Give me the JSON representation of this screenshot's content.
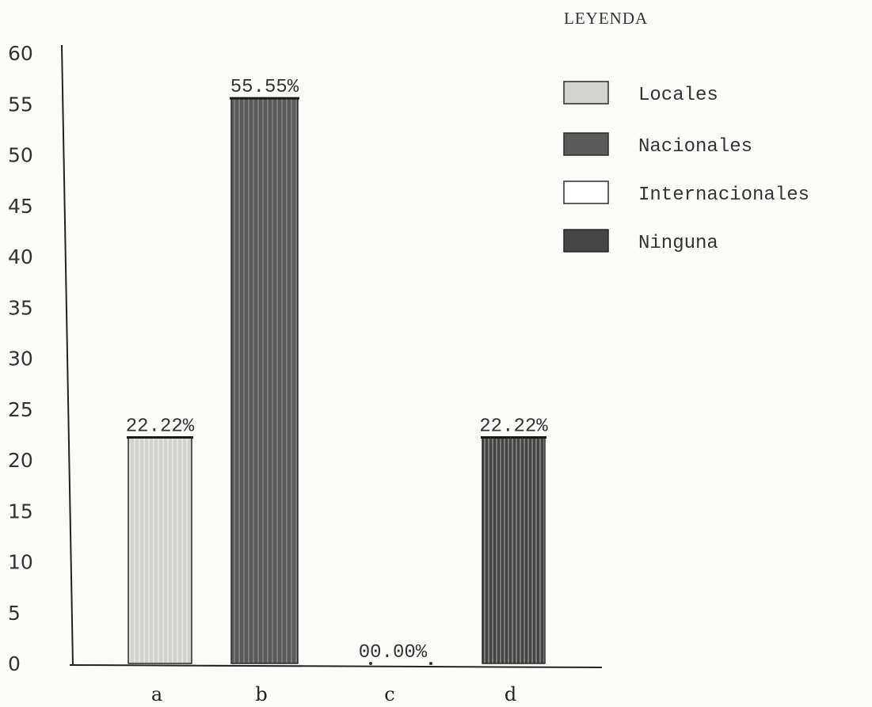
{
  "chart_data": {
    "type": "bar",
    "categories": [
      "a",
      "b",
      "c",
      "d"
    ],
    "values": [
      22.22,
      55.55,
      0.0,
      22.22
    ],
    "data_labels": [
      "22.22%",
      "55.55%",
      "00.00%",
      "22.22%"
    ],
    "colors": [
      "#d2d2d0",
      "#5a5a5a",
      "#ffffff",
      "#454545"
    ],
    "yticks": [
      "0",
      "5",
      "10",
      "15",
      "20",
      "25",
      "30",
      "35",
      "40",
      "45",
      "50",
      "55",
      "60"
    ],
    "ylim": [
      0,
      60
    ],
    "title": "",
    "xlabel": "",
    "ylabel": "",
    "grid": false,
    "legend": {
      "title": "LEYENDA",
      "placement": "top-right",
      "entries": [
        {
          "label": "Locales",
          "color": "#d2d2d0"
        },
        {
          "label": "Nacionales",
          "color": "#5a5a5a"
        },
        {
          "label": "Internacionales",
          "color": "#ffffff"
        },
        {
          "label": "Ninguna",
          "color": "#454545"
        }
      ]
    }
  }
}
